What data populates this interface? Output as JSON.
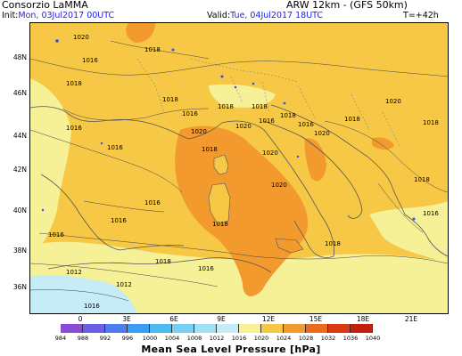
{
  "header": {
    "org": "Consorzio LaMMA",
    "model": "ARW 12km - (GFS 50km)",
    "init_label": "Init:",
    "init_value": "Mon, 03Jul2017 00UTC",
    "valid_label": "Valid:",
    "valid_value": "Tue, 04Jul2017 18UTC",
    "lead_time": "T=+42h"
  },
  "map": {
    "lat_labels": [
      "48N",
      "46N",
      "44N",
      "42N",
      "40N",
      "38N",
      "36N"
    ],
    "lon_labels": [
      "0",
      "3E",
      "6E",
      "9E",
      "12E",
      "15E",
      "18E",
      "21E"
    ],
    "isobar_labels": [
      "1020",
      "1016",
      "1018",
      "1018",
      "1018",
      "1016",
      "1018",
      "1018",
      "1016",
      "1018",
      "1020",
      "1016",
      "1020",
      "1018",
      "1020",
      "1018",
      "1016",
      "1020",
      "1020",
      "1020",
      "1016",
      "1018",
      "1016",
      "1016",
      "1018",
      "1018",
      "1016",
      "1012",
      "1012",
      "1016",
      "1018",
      "1016",
      "1018",
      "1016"
    ]
  },
  "colorbar": {
    "title": "Mean Sea Level Pressure [hPa]",
    "ticks": [
      "984",
      "988",
      "992",
      "996",
      "1000",
      "1004",
      "1008",
      "1012",
      "1016",
      "1020",
      "1024",
      "1028",
      "1032",
      "1036",
      "1040"
    ],
    "colors": [
      "#8a4bd8",
      "#6b5ee6",
      "#4f7df0",
      "#3a9cf2",
      "#4dbbf0",
      "#76d0f2",
      "#9fe0f6",
      "#c6ecf8",
      "#f6f096",
      "#f7c845",
      "#f39a2e",
      "#eb6a1e",
      "#d93a12",
      "#c31f0f"
    ]
  }
}
